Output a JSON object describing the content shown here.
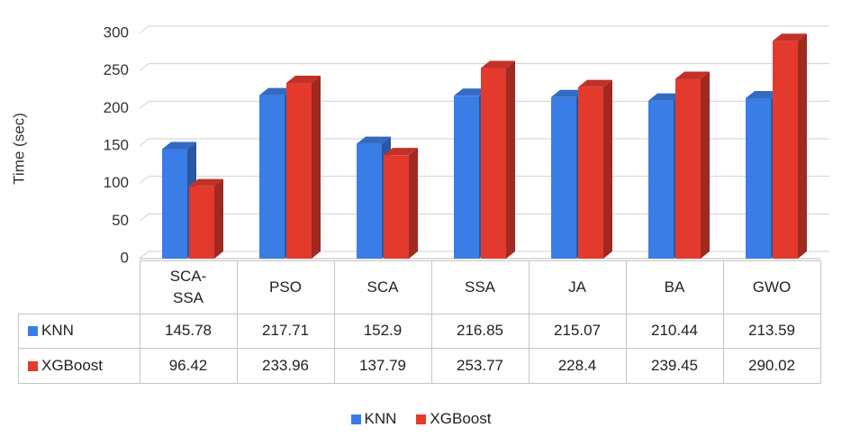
{
  "chart_data": {
    "type": "bar",
    "y_label": "Time (sec)",
    "categories": [
      "SCA-SSA",
      "PSO",
      "SCA",
      "SSA",
      "JA",
      "BA",
      "GWO"
    ],
    "series": [
      {
        "name": "KNN",
        "color": "#3b7de6",
        "values": [
          145.78,
          217.71,
          152.9,
          216.85,
          215.07,
          210.44,
          213.59
        ]
      },
      {
        "name": "XGBoost",
        "color": "#e43a2e",
        "values": [
          96.42,
          233.96,
          137.79,
          253.77,
          228.4,
          239.45,
          290.02
        ]
      }
    ],
    "ylim": [
      0,
      300
    ],
    "yticks": [
      0,
      50,
      100,
      150,
      200,
      250,
      300
    ],
    "grid": true,
    "legend": "bottom"
  }
}
